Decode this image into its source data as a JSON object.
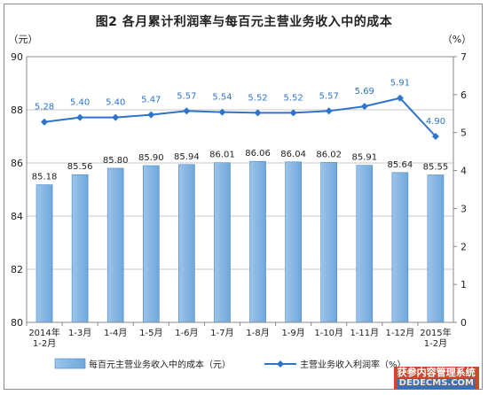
{
  "title": "图2 各月累计利润率与每百元主营业务收入中的成本",
  "chart_data": {
    "type": "bar",
    "categories": [
      [
        "2014年",
        "1-2月"
      ],
      [
        "1-3月"
      ],
      [
        "1-4月"
      ],
      [
        "1-5月"
      ],
      [
        "1-6月"
      ],
      [
        "1-7月"
      ],
      [
        "1-8月"
      ],
      [
        "1-9月"
      ],
      [
        "1-10月"
      ],
      [
        "1-11月"
      ],
      [
        "1-12月"
      ],
      [
        "2015年",
        "1-2月"
      ]
    ],
    "series": [
      {
        "name": "每百元主营业务收入中的成本（元）",
        "type": "bar",
        "axis": "left",
        "color": "#6fa8dc",
        "values": [
          85.18,
          85.56,
          85.8,
          85.9,
          85.94,
          86.01,
          86.06,
          86.04,
          86.02,
          85.91,
          85.64,
          85.55
        ],
        "labels": [
          "85.18",
          "85.56",
          "85.80",
          "85.90",
          "85.94",
          "86.01",
          "86.06",
          "86.04",
          "86.02",
          "85.91",
          "85.64",
          "85.55"
        ]
      },
      {
        "name": "主营业务收入利润率（%）",
        "type": "line",
        "axis": "right",
        "color": "#2e74c8",
        "values": [
          5.28,
          5.4,
          5.4,
          5.47,
          5.57,
          5.54,
          5.52,
          5.52,
          5.57,
          5.69,
          5.91,
          4.9
        ],
        "labels": [
          "5.28",
          "5.40",
          "5.40",
          "5.47",
          "5.57",
          "5.54",
          "5.52",
          "5.52",
          "5.57",
          "5.69",
          "5.91",
          "4.90"
        ]
      }
    ],
    "left_axis": {
      "unit": "（元）",
      "ylim": [
        80,
        90
      ],
      "ticks": [
        "80",
        "82",
        "84",
        "86",
        "88",
        "90"
      ]
    },
    "right_axis": {
      "unit": "（%）",
      "ylim": [
        0,
        7
      ],
      "ticks": [
        "0",
        "1",
        "2",
        "3",
        "4",
        "5",
        "6",
        "7"
      ]
    },
    "grid": true,
    "legend_position": "bottom"
  },
  "watermark": {
    "line1": "获参内容管理系统",
    "line2": "DEDECMS.COM"
  }
}
